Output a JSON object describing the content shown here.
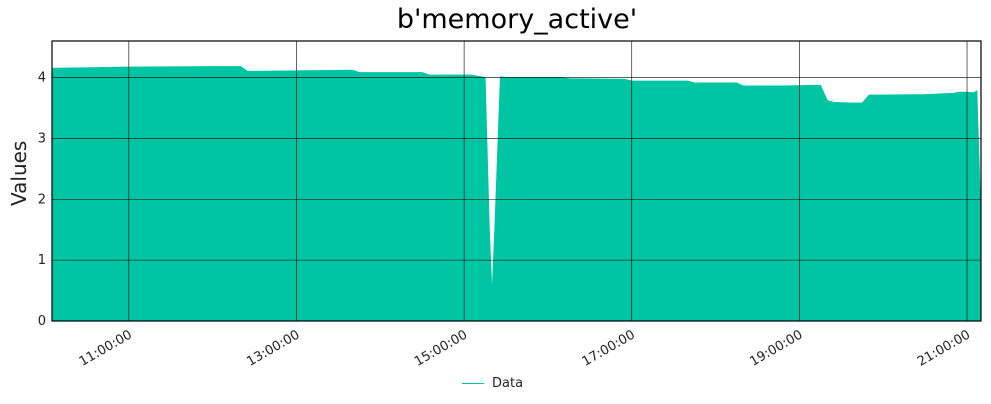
{
  "chart_data": {
    "type": "area",
    "title": "b'memory_active'",
    "xlabel": "",
    "ylabel": "Values",
    "x_start": "2000-01-01 10:05:00",
    "x_end": "2000-01-01 21:10:00",
    "xlim": [
      "10:05:00",
      "21:10:00"
    ],
    "ylim": [
      0,
      4.6
    ],
    "x_ticks": [
      "11:00:00",
      "13:00:00",
      "15:00:00",
      "17:00:00",
      "19:00:00",
      "21:00:00"
    ],
    "y_ticks": [
      "0",
      "1",
      "2",
      "3",
      "4"
    ],
    "grid": true,
    "legend_position": "bottom-center",
    "color": "#00c5a3",
    "series": [
      {
        "name": "Data",
        "x": [
          "10:05:00",
          "11:00:00",
          "12:00:00",
          "12:20:00",
          "12:25:00",
          "13:00:00",
          "13:40:00",
          "13:45:00",
          "14:30:00",
          "14:35:00",
          "15:05:00",
          "15:10:00",
          "15:15:00",
          "15:18:00",
          "15:20:00",
          "15:22:00",
          "15:26:00",
          "15:30:00",
          "16:10:00",
          "16:15:00",
          "16:55:00",
          "17:00:00",
          "17:40:00",
          "17:45:00",
          "18:15:00",
          "18:20:00",
          "18:50:00",
          "19:10:00",
          "19:15:00",
          "19:20:00",
          "19:25:00",
          "19:40:00",
          "19:45:00",
          "19:50:00",
          "20:30:00",
          "20:50:00",
          "20:55:00",
          "21:05:00",
          "21:07:00",
          "21:10:00"
        ],
        "values": [
          4.15,
          4.17,
          4.18,
          4.18,
          4.1,
          4.11,
          4.12,
          4.08,
          4.08,
          4.04,
          4.04,
          4.02,
          4.0,
          1.5,
          0.4,
          1.5,
          4.01,
          4.0,
          4.0,
          3.98,
          3.97,
          3.94,
          3.94,
          3.91,
          3.91,
          3.86,
          3.86,
          3.87,
          3.87,
          3.62,
          3.59,
          3.58,
          3.58,
          3.71,
          3.72,
          3.74,
          3.76,
          3.75,
          3.78,
          1.6
        ]
      }
    ]
  }
}
